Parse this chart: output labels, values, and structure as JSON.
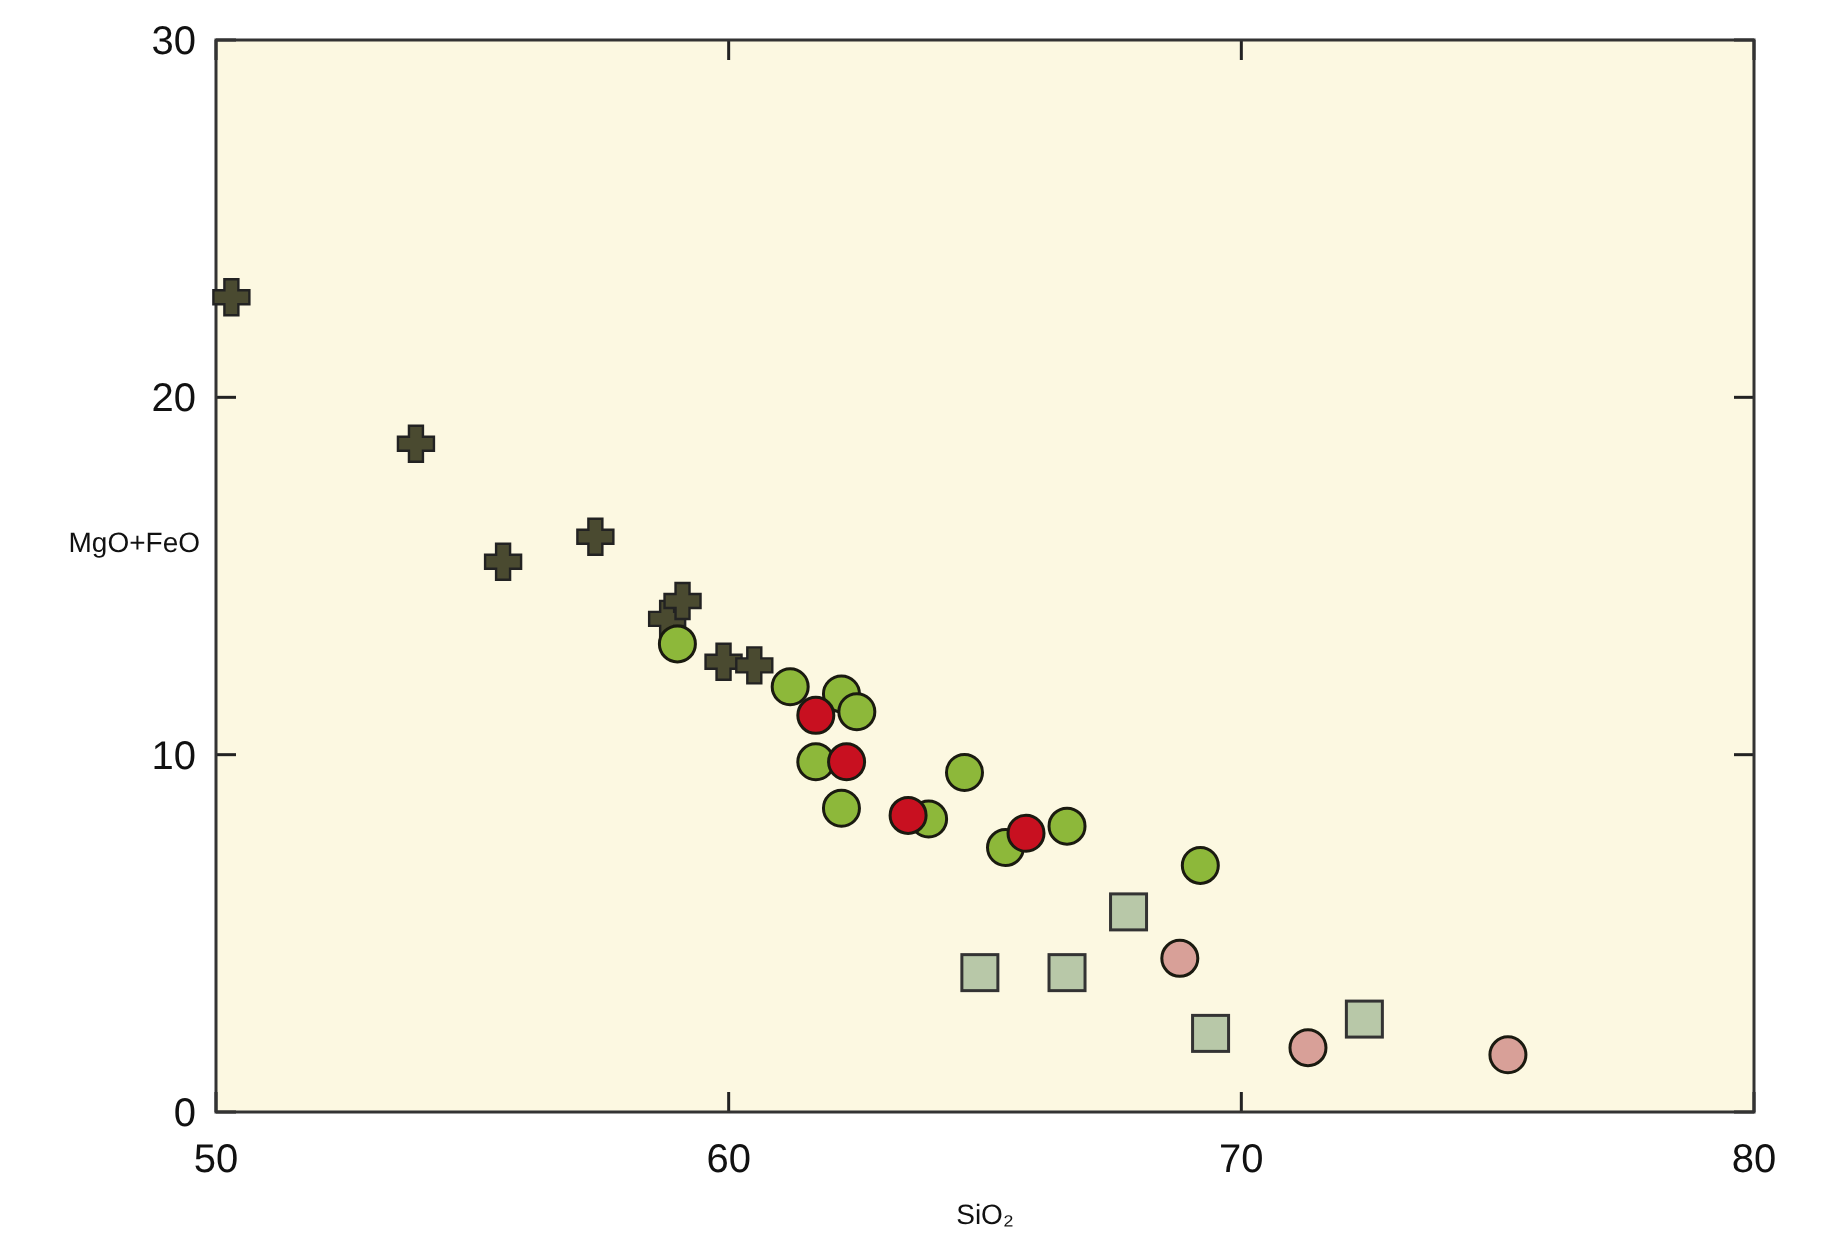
{
  "chart_data": {
    "type": "scatter",
    "xlabel": "SiO₂",
    "ylabel": "MgO+FeO",
    "xlim": [
      50,
      80
    ],
    "ylim": [
      0,
      30
    ],
    "xticks": [
      50,
      60,
      70,
      80
    ],
    "yticks": [
      0,
      10,
      20,
      30
    ],
    "grid": false,
    "series": [
      {
        "color": "#4a4a30",
        "marker": "cross",
        "x": [
          50.3,
          53.9,
          55.6,
          57.4,
          58.8,
          59.1,
          59.9,
          60.5
        ],
        "values": [
          22.8,
          18.7,
          15.4,
          16.1,
          13.8,
          14.3,
          12.6,
          12.5
        ]
      },
      {
        "color": "#8db83a",
        "marker": "circle",
        "x": [
          59.0,
          61.2,
          62.2,
          62.5,
          61.7,
          62.2,
          64.6,
          63.9,
          65.4,
          66.6,
          69.2
        ],
        "values": [
          13.1,
          11.9,
          11.7,
          11.2,
          9.8,
          8.5,
          9.5,
          8.2,
          7.4,
          8.0,
          6.9
        ]
      },
      {
        "color": "#c81020",
        "marker": "circle",
        "x": [
          61.7,
          62.3,
          63.5,
          65.8
        ],
        "values": [
          11.1,
          9.8,
          8.3,
          7.8
        ]
      },
      {
        "color": "#b8c8a8",
        "marker": "square",
        "x": [
          64.9,
          66.6,
          67.8,
          69.4,
          72.4
        ],
        "values": [
          3.9,
          3.9,
          5.6,
          2.2,
          2.6
        ]
      },
      {
        "color": "#d8a098",
        "marker": "circle",
        "x": [
          68.8,
          71.3,
          75.2
        ],
        "values": [
          4.3,
          1.8,
          1.6
        ]
      }
    ]
  }
}
